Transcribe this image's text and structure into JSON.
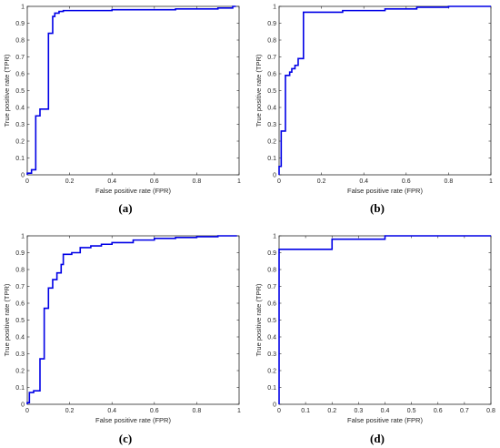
{
  "colors": {
    "curve": "#0000e6",
    "axis": "#262626",
    "background": "#ffffff"
  },
  "chart_data": [
    {
      "type": "line",
      "caption": "(a)",
      "xlabel": "False positive rate (FPR)",
      "ylabel": "True positive rate (TPR)",
      "xlim": [
        0,
        1
      ],
      "ylim": [
        0,
        1
      ],
      "xticks": [
        "0",
        "0.2",
        "0.4",
        "0.6",
        "0.8",
        "1"
      ],
      "yticks": [
        "0",
        "0.1",
        "0.2",
        "0.3",
        "0.4",
        "0.5",
        "0.6",
        "0.7",
        "0.8",
        "0.9",
        "1"
      ],
      "grid": false,
      "series": [
        {
          "x": [
            0,
            0,
            0.02,
            0.02,
            0.04,
            0.04,
            0.06,
            0.06,
            0.1,
            0.1,
            0.12,
            0.12,
            0.13,
            0.13,
            0.15,
            0.15,
            0.17,
            0.17,
            0.4,
            0.4,
            0.7,
            0.7,
            0.9,
            0.9,
            0.97,
            0.97,
            0.985
          ],
          "y": [
            0,
            0.01,
            0.01,
            0.03,
            0.03,
            0.35,
            0.35,
            0.39,
            0.39,
            0.84,
            0.84,
            0.94,
            0.94,
            0.96,
            0.96,
            0.97,
            0.97,
            0.975,
            0.975,
            0.98,
            0.98,
            0.985,
            0.985,
            0.99,
            0.99,
            1.0,
            1.0
          ]
        }
      ]
    },
    {
      "type": "line",
      "caption": "(b)",
      "xlabel": "False positive rate (FPR)",
      "ylabel": "True positive rate (TPR)",
      "xlim": [
        0,
        1
      ],
      "ylim": [
        0,
        1
      ],
      "xticks": [
        "0",
        "0.2",
        "0.4",
        "0.6",
        "0.8",
        "1"
      ],
      "yticks": [
        "0",
        "0.1",
        "0.2",
        "0.3",
        "0.4",
        "0.5",
        "0.6",
        "0.7",
        "0.8",
        "0.9",
        "1"
      ],
      "grid": false,
      "series": [
        {
          "x": [
            0,
            0,
            0.01,
            0.01,
            0.03,
            0.03,
            0.05,
            0.05,
            0.06,
            0.06,
            0.075,
            0.075,
            0.09,
            0.09,
            0.115,
            0.115,
            0.3,
            0.3,
            0.5,
            0.5,
            0.65,
            0.65,
            0.8,
            0.8,
            1.0
          ],
          "y": [
            0,
            0.05,
            0.05,
            0.26,
            0.26,
            0.59,
            0.59,
            0.61,
            0.61,
            0.63,
            0.63,
            0.65,
            0.65,
            0.69,
            0.69,
            0.965,
            0.965,
            0.975,
            0.975,
            0.985,
            0.985,
            0.995,
            0.995,
            1.0,
            1.0
          ]
        }
      ]
    },
    {
      "type": "line",
      "caption": "(c)",
      "xlabel": "False positive rate (FPR)",
      "ylabel": "True positive rate (TPR)",
      "xlim": [
        0,
        1
      ],
      "ylim": [
        0,
        1
      ],
      "xticks": [
        "0",
        "0.2",
        "0.4",
        "0.6",
        "0.8",
        "1"
      ],
      "yticks": [
        "0",
        "0.1",
        "0.2",
        "0.3",
        "0.4",
        "0.5",
        "0.6",
        "0.7",
        "0.8",
        "0.9",
        "1"
      ],
      "grid": false,
      "series": [
        {
          "x": [
            0,
            0,
            0.01,
            0.01,
            0.03,
            0.03,
            0.06,
            0.06,
            0.08,
            0.08,
            0.1,
            0.1,
            0.12,
            0.12,
            0.14,
            0.14,
            0.16,
            0.16,
            0.17,
            0.17,
            0.21,
            0.21,
            0.25,
            0.25,
            0.3,
            0.3,
            0.35,
            0.35,
            0.4,
            0.4,
            0.5,
            0.5,
            0.6,
            0.6,
            0.7,
            0.7,
            0.8,
            0.8,
            0.9,
            0.9,
            0.97,
            0.97,
            0.99
          ],
          "y": [
            0,
            0.01,
            0.01,
            0.07,
            0.07,
            0.08,
            0.08,
            0.27,
            0.27,
            0.57,
            0.57,
            0.69,
            0.69,
            0.74,
            0.74,
            0.78,
            0.78,
            0.83,
            0.83,
            0.89,
            0.89,
            0.9,
            0.9,
            0.93,
            0.93,
            0.94,
            0.94,
            0.95,
            0.95,
            0.96,
            0.96,
            0.975,
            0.975,
            0.985,
            0.985,
            0.99,
            0.99,
            0.995,
            0.995,
            1.0,
            1.0,
            1.0,
            1.0
          ]
        }
      ]
    },
    {
      "type": "line",
      "caption": "(d)",
      "xlabel": "False positive rate (FPR)",
      "ylabel": "True positive rate (TPR)",
      "xlim": [
        0,
        0.8
      ],
      "ylim": [
        0,
        1
      ],
      "xticks": [
        "0",
        "0.1",
        "0.2",
        "0.3",
        "0.4",
        "0.5",
        "0.6",
        "0.7",
        "0.8"
      ],
      "yticks": [
        "0",
        "0.1",
        "0.2",
        "0.3",
        "0.4",
        "0.5",
        "0.6",
        "0.7",
        "0.8",
        "0.9",
        "1"
      ],
      "grid": false,
      "series": [
        {
          "x": [
            0,
            0,
            0.2,
            0.2,
            0.4,
            0.4,
            0.8
          ],
          "y": [
            0,
            0.92,
            0.92,
            0.98,
            0.98,
            1.0,
            1.0
          ]
        }
      ]
    }
  ]
}
